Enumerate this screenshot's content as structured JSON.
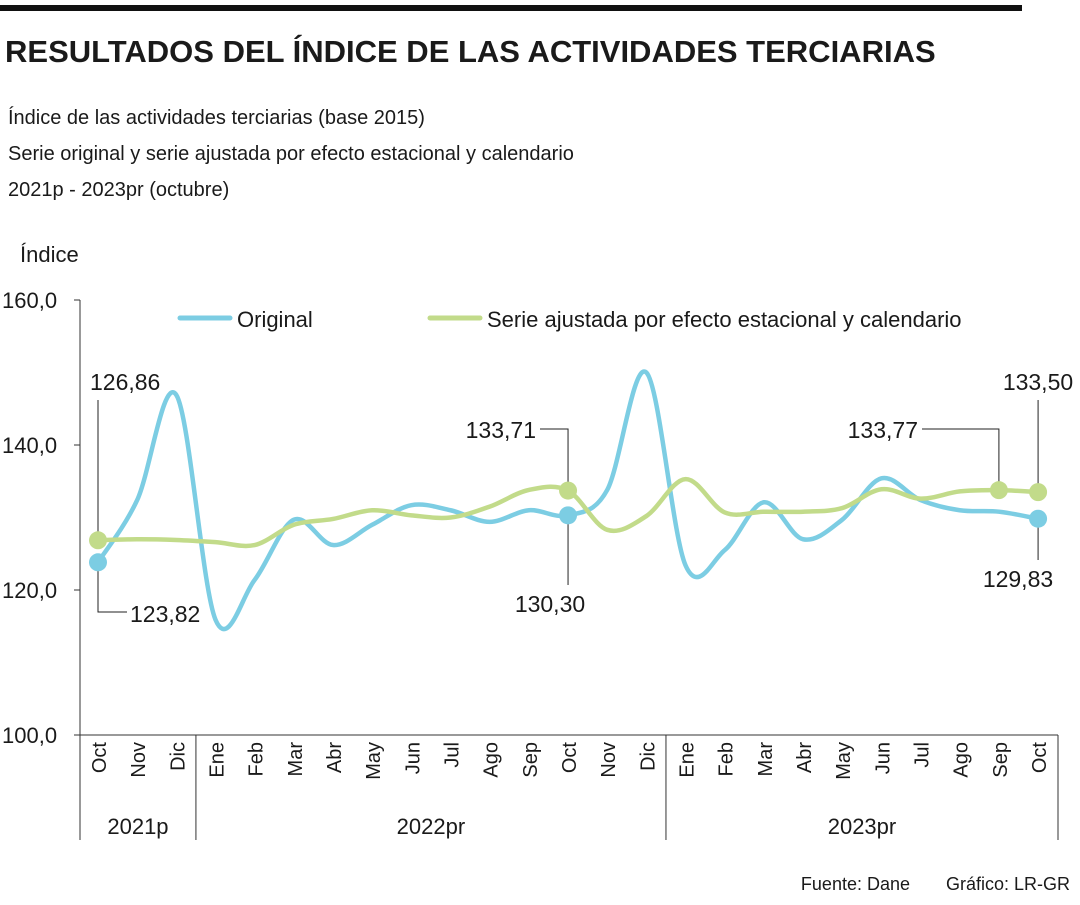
{
  "header": {
    "title": "RESULTADOS DEL ÍNDICE DE LAS ACTIVIDADES TERCIARIAS",
    "subtitle_lines": [
      "Índice de las actividades terciarias (base 2015)",
      "Serie original y serie ajustada por efecto estacional y calendario",
      "2021p - 2023pr (octubre)"
    ]
  },
  "footer": {
    "source": "Fuente: Dane",
    "credit": "Gráfico: LR-GR"
  },
  "chart_data": {
    "type": "line",
    "ylabel": "Índice",
    "ylim": [
      100,
      160
    ],
    "yticks": [
      "100,0",
      "120,0",
      "140,0",
      "160,0"
    ],
    "grid": false,
    "legend_position": "top",
    "categories": [
      "Oct",
      "Nov",
      "Dic",
      "Ene",
      "Feb",
      "Mar",
      "Abr",
      "May",
      "Jun",
      "Jul",
      "Ago",
      "Sep",
      "Oct",
      "Nov",
      "Dic",
      "Ene",
      "Feb",
      "Mar",
      "Abr",
      "May",
      "Jun",
      "Jul",
      "Ago",
      "Sep",
      "Oct"
    ],
    "year_groups": [
      {
        "label": "2021p",
        "count": 3
      },
      {
        "label": "2022pr",
        "count": 12
      },
      {
        "label": "2023pr",
        "count": 10
      }
    ],
    "series": [
      {
        "name": "Original",
        "color": "#7ccde3",
        "values": [
          123.82,
          132.4,
          146.9,
          115.9,
          121.4,
          129.7,
          126.2,
          129.0,
          131.7,
          131.0,
          129.4,
          131.0,
          130.3,
          133.8,
          150.0,
          123.4,
          125.5,
          132.1,
          127.0,
          129.7,
          135.4,
          132.4,
          131.0,
          130.8,
          129.83
        ]
      },
      {
        "name": "Serie ajustada por efecto estacional y calendario",
        "color": "#c2db8a",
        "values": [
          126.86,
          127.0,
          126.9,
          126.6,
          126.2,
          129.0,
          129.8,
          131.0,
          130.3,
          130.0,
          131.5,
          133.8,
          133.71,
          128.3,
          130.2,
          135.3,
          130.7,
          130.8,
          130.8,
          131.3,
          133.9,
          132.6,
          133.6,
          133.77,
          133.5
        ]
      }
    ],
    "annotations": [
      {
        "series": 1,
        "index": 0,
        "label": "126,86"
      },
      {
        "series": 0,
        "index": 0,
        "label": "123,82"
      },
      {
        "series": 1,
        "index": 12,
        "label": "133,71"
      },
      {
        "series": 0,
        "index": 12,
        "label": "130,30"
      },
      {
        "series": 1,
        "index": 23,
        "label": "133,77"
      },
      {
        "series": 1,
        "index": 24,
        "label": "133,50"
      },
      {
        "series": 0,
        "index": 24,
        "label": "129,83"
      }
    ]
  }
}
